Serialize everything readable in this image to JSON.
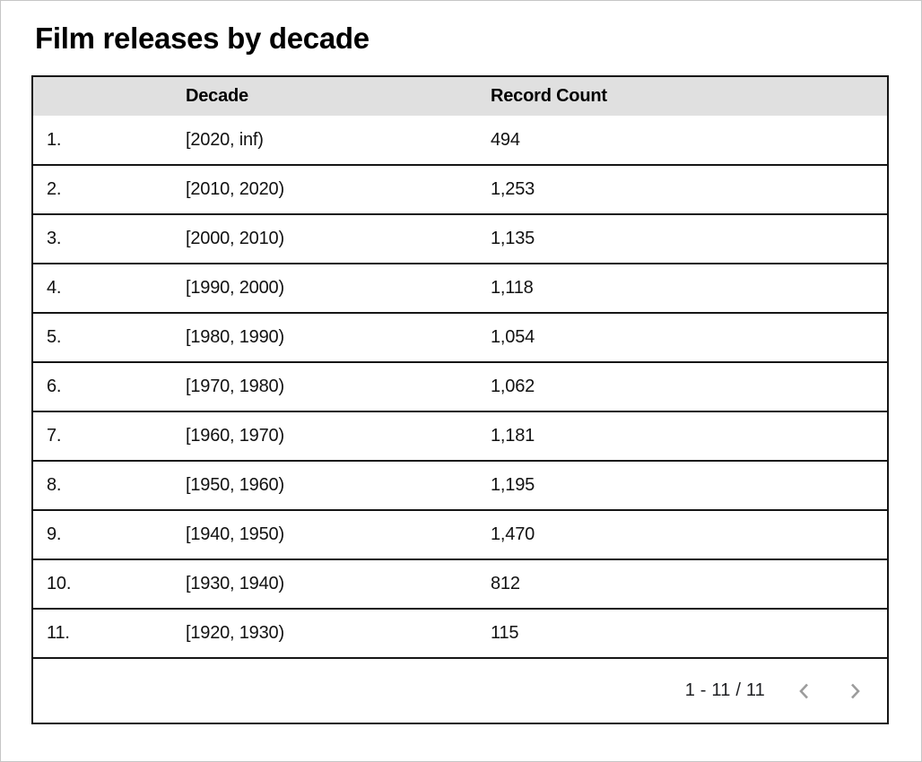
{
  "title": "Film releases by decade",
  "table": {
    "headers": [
      "",
      "Decade",
      "Record Count"
    ],
    "rows": [
      {
        "index": "1.",
        "decade": "[2020, inf)",
        "count": "494"
      },
      {
        "index": "2.",
        "decade": "[2010, 2020)",
        "count": "1,253"
      },
      {
        "index": "3.",
        "decade": "[2000, 2010)",
        "count": "1,135"
      },
      {
        "index": "4.",
        "decade": "[1990, 2000)",
        "count": "1,118"
      },
      {
        "index": "5.",
        "decade": "[1980, 1990)",
        "count": "1,054"
      },
      {
        "index": "6.",
        "decade": "[1970, 1980)",
        "count": "1,062"
      },
      {
        "index": "7.",
        "decade": "[1960, 1970)",
        "count": "1,181"
      },
      {
        "index": "8.",
        "decade": "[1950, 1960)",
        "count": "1,195"
      },
      {
        "index": "9.",
        "decade": "[1940, 1950)",
        "count": "1,470"
      },
      {
        "index": "10.",
        "decade": "[1930, 1940)",
        "count": "812"
      },
      {
        "index": "11.",
        "decade": "[1920, 1930)",
        "count": "115"
      }
    ]
  },
  "pagination": {
    "range_label": "1 - 11 / 11",
    "prev_icon": "chevron-left",
    "next_icon": "chevron-right"
  },
  "colors": {
    "header_background": "#e0e0e0",
    "table_border": "#161616",
    "text": "#111111",
    "chevron": "#9c9c9c",
    "frame_border": "#c6c6c6"
  },
  "chart_data": {
    "type": "table",
    "title": "Film releases by decade",
    "columns": [
      "Decade",
      "Record Count"
    ],
    "categories": [
      "[2020, inf)",
      "[2010, 2020)",
      "[2000, 2010)",
      "[1990, 2000)",
      "[1980, 1990)",
      "[1970, 1980)",
      "[1960, 1970)",
      "[1950, 1960)",
      "[1940, 1950)",
      "[1930, 1940)",
      "[1920, 1930)"
    ],
    "values": [
      494,
      1253,
      1135,
      1118,
      1054,
      1062,
      1181,
      1195,
      1470,
      812,
      115
    ],
    "pagination": "1 - 11 / 11"
  }
}
